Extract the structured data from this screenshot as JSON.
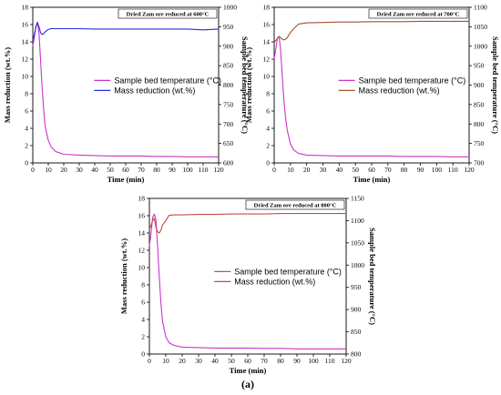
{
  "figure_label": "(a)",
  "chart_data": [
    {
      "type": "line",
      "annotation": "Dried Zam ore reduced at 600°C",
      "xlabel": "Time (min)",
      "ylabel": "Mass reduction (wt.%)",
      "y2label": "Sample bed temperature (°C)",
      "xlim": [
        0,
        120
      ],
      "ylim": [
        0,
        18
      ],
      "y2lim": [
        600,
        1000
      ],
      "xticks": [
        0,
        10,
        20,
        30,
        40,
        50,
        60,
        70,
        80,
        90,
        100,
        110,
        120
      ],
      "yticks": [
        0,
        2,
        4,
        6,
        8,
        10,
        12,
        14,
        16,
        18
      ],
      "y2ticks": [
        600,
        650,
        700,
        750,
        800,
        850,
        900,
        950,
        1000
      ],
      "legend": [
        "Sample bed temperature (°C)",
        "Mass reduction (wt.%)"
      ],
      "legend_position": "center-right",
      "series": [
        {
          "name": "Sample bed temperature (°C)",
          "axis": "y",
          "color": "#cc33cc",
          "x": [
            0,
            1,
            2,
            3,
            4,
            5,
            6,
            7,
            8,
            10,
            12,
            15,
            20,
            30,
            40,
            50,
            60,
            70,
            80,
            90,
            100,
            110,
            120
          ],
          "y": [
            13.5,
            14.5,
            15.8,
            16.3,
            15.0,
            12.0,
            8.8,
            6.2,
            4.2,
            2.6,
            1.8,
            1.3,
            1.0,
            0.9,
            0.85,
            0.8,
            0.8,
            0.8,
            0.75,
            0.75,
            0.7,
            0.7,
            0.7
          ]
        },
        {
          "name": "Mass reduction (wt.%)",
          "axis": "y2",
          "color": "#2a2adc",
          "x": [
            0,
            1,
            2,
            3,
            4,
            5,
            6,
            7,
            8,
            10,
            12,
            15,
            20,
            30,
            40,
            50,
            60,
            70,
            80,
            90,
            100,
            110,
            120
          ],
          "y": [
            915,
            930,
            950,
            960,
            950,
            935,
            930,
            932,
            937,
            943,
            945,
            945,
            945,
            945,
            944,
            944,
            944,
            944,
            944,
            944,
            944,
            942,
            944
          ]
        }
      ]
    },
    {
      "type": "line",
      "annotation": "Dried Zam ore reduced at 700°C",
      "xlabel": "Time (min)",
      "ylabel": "Mass reduction (wt.%)",
      "y2label": "Sample bed temperature (°C)",
      "xlim": [
        0,
        120
      ],
      "ylim": [
        0,
        18
      ],
      "y2lim": [
        700,
        1100
      ],
      "xticks": [
        0,
        10,
        20,
        30,
        40,
        50,
        60,
        70,
        80,
        90,
        100,
        110,
        120
      ],
      "yticks": [
        0,
        2,
        4,
        6,
        8,
        10,
        12,
        14,
        16,
        18
      ],
      "y2ticks": [
        700,
        750,
        800,
        850,
        900,
        950,
        1000,
        1050,
        1100
      ],
      "legend": [
        "Sample bed temperature (°C)",
        "Mass reduction (wt.%)"
      ],
      "legend_position": "center-right",
      "series": [
        {
          "name": "Sample bed temperature (°C)",
          "axis": "y",
          "color": "#cc33cc",
          "x": [
            0,
            1,
            2,
            3,
            4,
            5,
            6,
            7,
            8,
            10,
            12,
            15,
            20,
            30,
            40,
            50,
            60,
            70,
            80,
            90,
            100,
            110,
            120
          ],
          "y": [
            12.0,
            13.2,
            14.5,
            14.6,
            13.0,
            10.0,
            7.2,
            5.2,
            3.8,
            2.2,
            1.5,
            1.1,
            0.9,
            0.85,
            0.8,
            0.8,
            0.8,
            0.8,
            0.75,
            0.75,
            0.75,
            0.7,
            0.7
          ]
        },
        {
          "name": "Mass reduction (wt.%)",
          "axis": "y2",
          "color": "#a0522d",
          "x": [
            0,
            1,
            2,
            3,
            4,
            5,
            6,
            7,
            8,
            10,
            12,
            15,
            20,
            30,
            40,
            50,
            60,
            70,
            80,
            90,
            100,
            110,
            120
          ],
          "y": [
            1010,
            1015,
            1020,
            1025,
            1022,
            1018,
            1016,
            1018,
            1022,
            1035,
            1045,
            1057,
            1060,
            1061,
            1062,
            1062,
            1063,
            1063,
            1063,
            1064,
            1064,
            1064,
            1064
          ]
        }
      ]
    },
    {
      "type": "line",
      "annotation": "Dried Zam ore reduced at 800°C",
      "xlabel": "Time (min)",
      "ylabel": "Mass reduction (wt.%)",
      "y2label": "Sample bed temperature (°C)",
      "xlim": [
        0,
        120
      ],
      "ylim": [
        0,
        18
      ],
      "y2lim": [
        800,
        1150
      ],
      "xticks": [
        0,
        10,
        20,
        30,
        40,
        50,
        60,
        70,
        80,
        90,
        100,
        110,
        120
      ],
      "yticks": [
        0,
        2,
        4,
        6,
        8,
        10,
        12,
        14,
        16,
        18
      ],
      "y2ticks": [
        800,
        850,
        900,
        950,
        1000,
        1050,
        1100,
        1150
      ],
      "legend": [
        "Sample bed temperature (°C)",
        "Mass reduction (wt.%)"
      ],
      "legend_position": "center-right",
      "series": [
        {
          "name": "Sample bed temperature (°C)",
          "axis": "y",
          "color": "#cc33cc",
          "x": [
            0,
            1,
            2,
            3,
            4,
            5,
            6,
            7,
            8,
            10,
            12,
            15,
            20,
            30,
            40,
            50,
            60,
            70,
            80,
            90,
            100,
            110,
            120
          ],
          "y": [
            12.5,
            14.0,
            15.8,
            16.2,
            15.5,
            12.5,
            9.0,
            6.0,
            3.8,
            2.0,
            1.3,
            1.0,
            0.8,
            0.75,
            0.7,
            0.7,
            0.7,
            0.65,
            0.65,
            0.6,
            0.6,
            0.6,
            0.6
          ]
        },
        {
          "name": "Mass reduction (wt.%)",
          "axis": "y2",
          "color": "#c0503c",
          "x": [
            0,
            1,
            2,
            3,
            4,
            5,
            6,
            7,
            8,
            10,
            12,
            15,
            20,
            30,
            40,
            50,
            60,
            70,
            80,
            90,
            100,
            110,
            120
          ],
          "y": [
            1080,
            1090,
            1100,
            1105,
            1085,
            1075,
            1072,
            1078,
            1090,
            1100,
            1112,
            1113,
            1113,
            1114,
            1114,
            1115,
            1115,
            1115,
            1116,
            1116,
            1116,
            1116,
            1116
          ]
        }
      ]
    }
  ]
}
